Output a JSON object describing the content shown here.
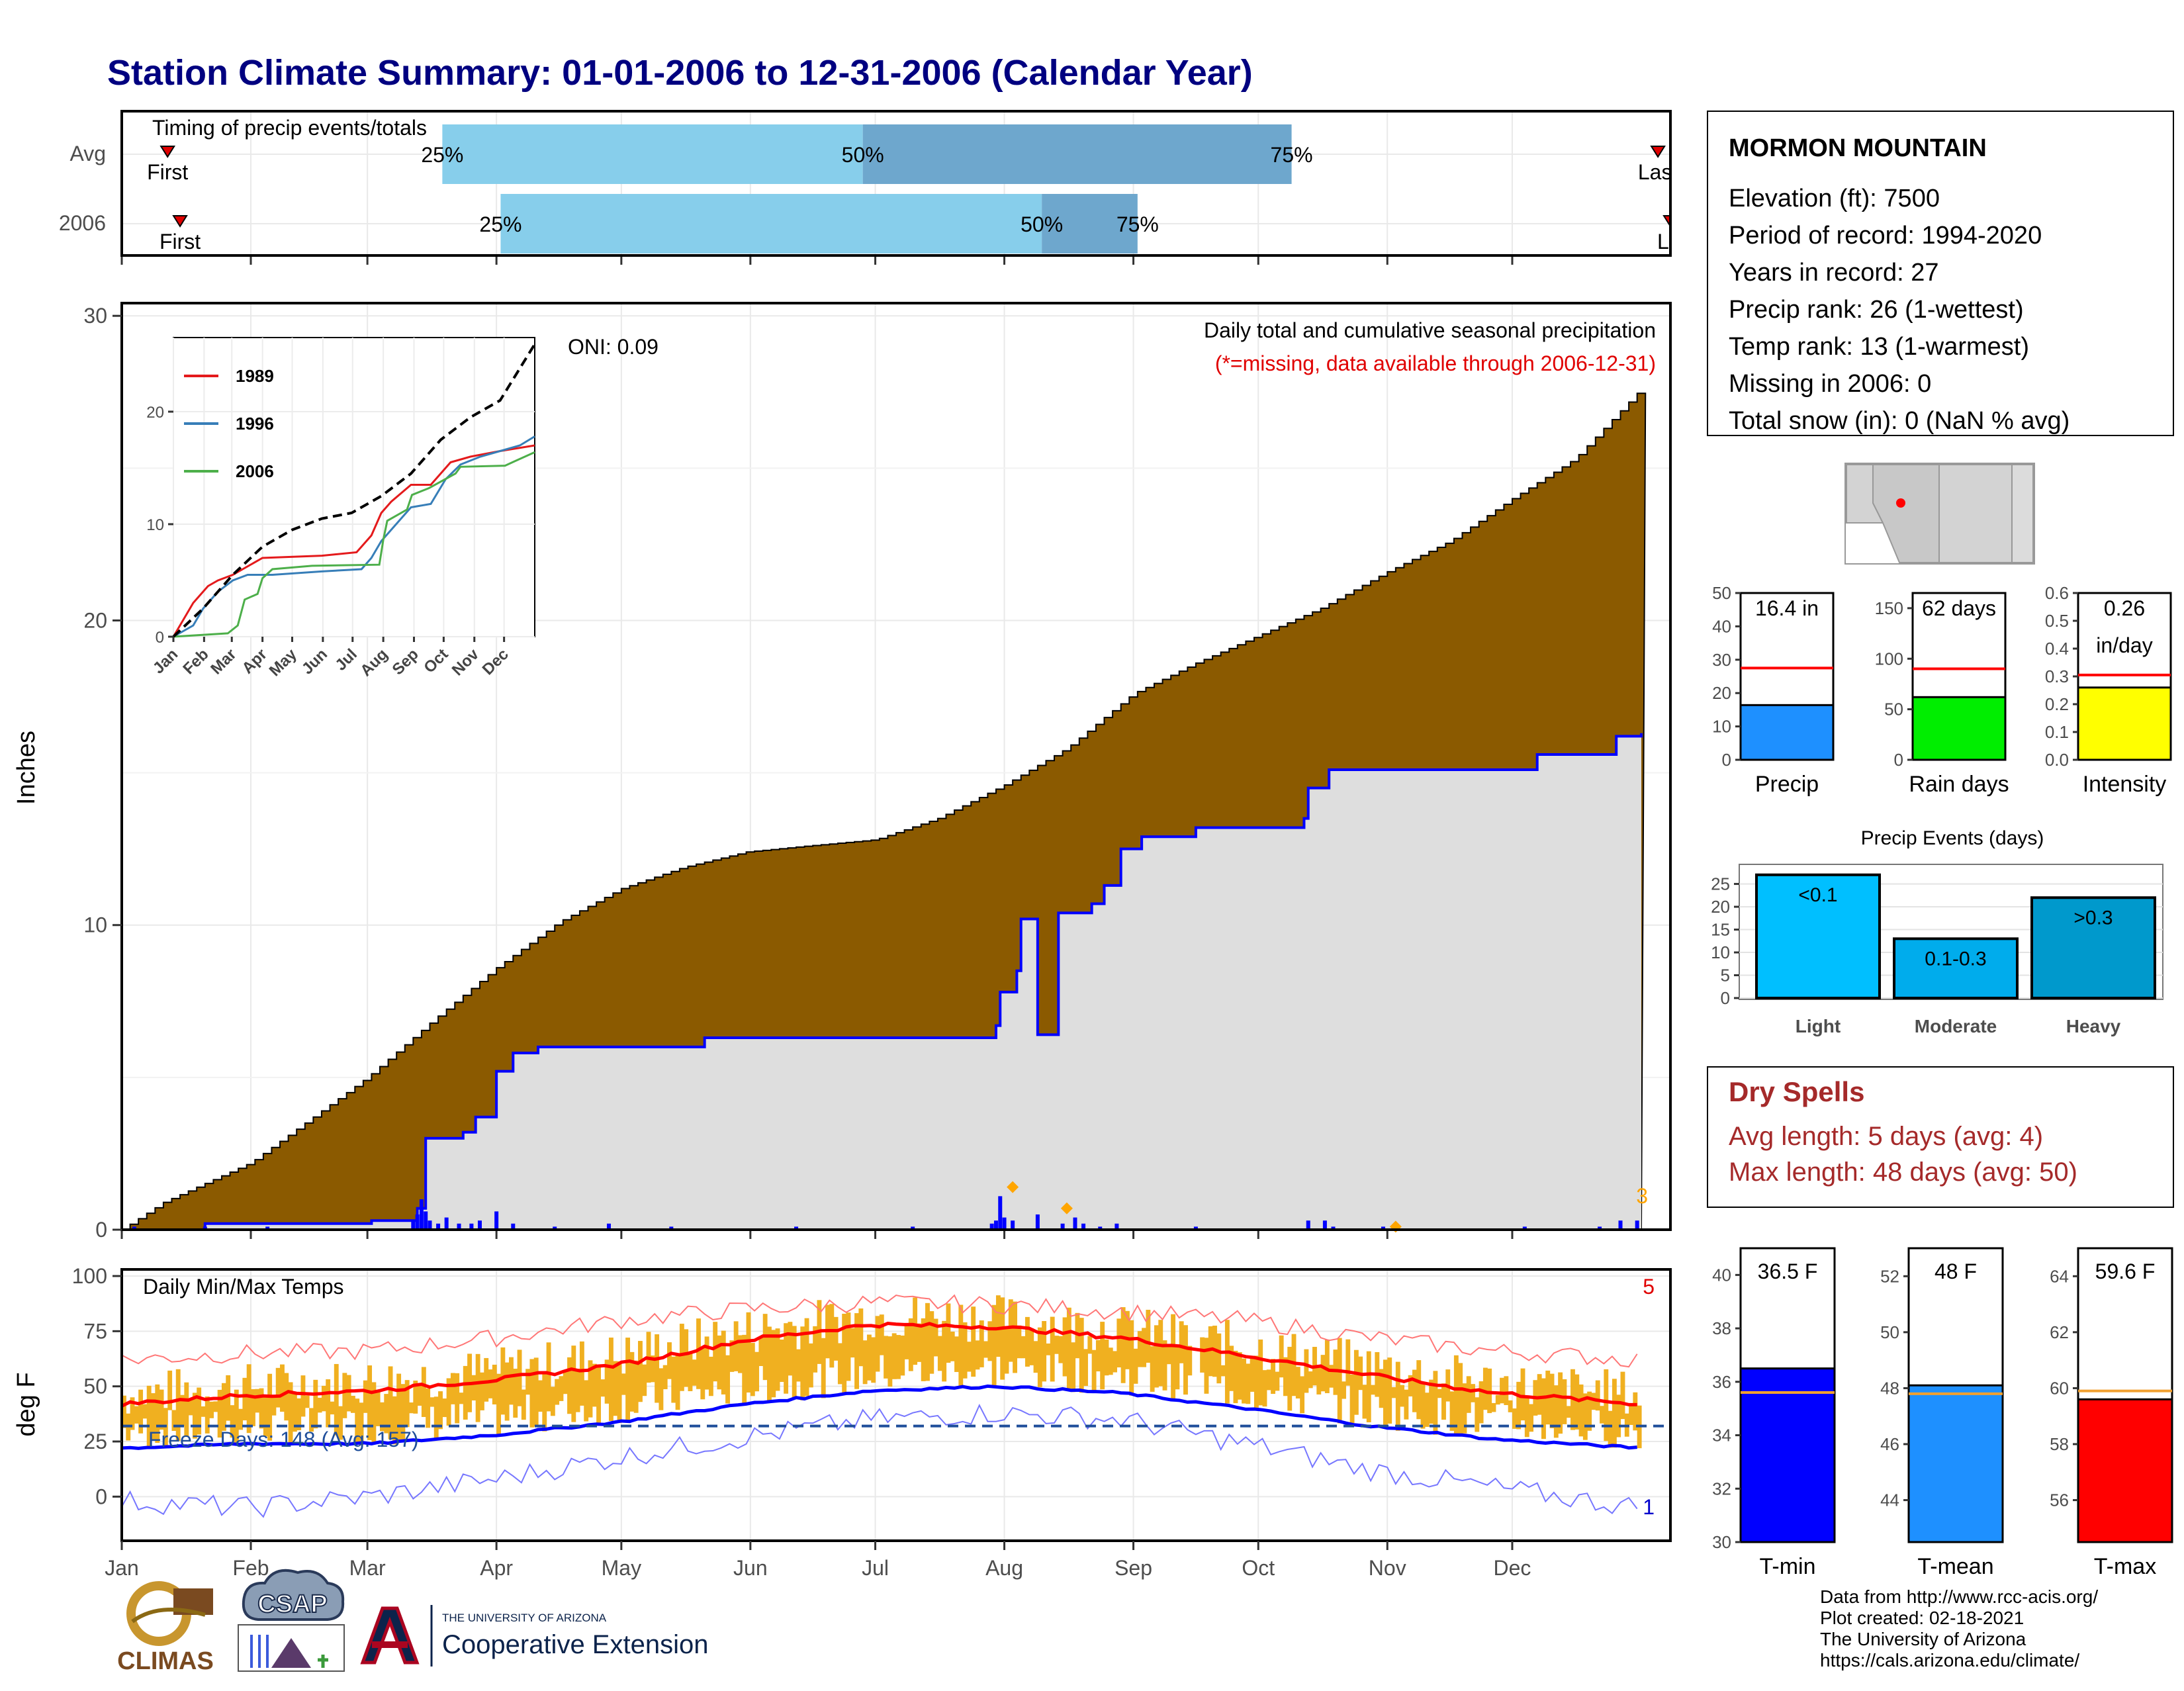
{
  "title": "Station Climate Summary: 01-01-2006 to 12-31-2006 (Calendar Year)",
  "colors": {
    "title": "#000080",
    "precip_fill": "#8b5a00",
    "obs_fill": "#dedede",
    "obs_line": "#0000ff",
    "temp_bar": "#f0b020",
    "dryspell": "#a52a2a"
  },
  "months": [
    "Jan",
    "Feb",
    "Mar",
    "Apr",
    "May",
    "Jun",
    "Jul",
    "Aug",
    "Sep",
    "Oct",
    "Nov",
    "Dec"
  ],
  "timing": {
    "title": "Timing of precip events/totals",
    "rows": [
      {
        "name": "Avg",
        "first": "First",
        "last": "Last",
        "q25": "25%",
        "q50": "50%",
        "q75": "75%",
        "q25_day": 77,
        "q50_day": 178,
        "q75_day": 281,
        "first_day": 11,
        "last_day": 369
      },
      {
        "name": "2006",
        "first": "First",
        "last": "Last",
        "q25": "25%",
        "q50": "50%",
        "q75": "75%",
        "q25_day": 91,
        "q50_day": 221,
        "q75_day": 244,
        "first_day": 14,
        "last_day": 375
      }
    ]
  },
  "precip": {
    "ylabel": "Inches",
    "subtitle": "Daily total and cumulative seasonal precipitation",
    "note": "(*=missing, data available through 2006-12-31)",
    "oni": "ONI: 0.09",
    "corner_count": "3",
    "yticks": [
      0,
      10,
      20,
      30
    ],
    "avg_cum": [
      [
        0,
        0
      ],
      [
        10,
        0.9
      ],
      [
        31,
        2.2
      ],
      [
        45,
        3.6
      ],
      [
        59,
        5
      ],
      [
        75,
        6.9
      ],
      [
        90,
        8.6
      ],
      [
        105,
        10.1
      ],
      [
        120,
        11.2
      ],
      [
        135,
        11.9
      ],
      [
        150,
        12.4
      ],
      [
        165,
        12.6
      ],
      [
        181,
        12.8
      ],
      [
        196,
        13.5
      ],
      [
        212,
        14.6
      ],
      [
        227,
        15.8
      ],
      [
        243,
        17.6
      ],
      [
        258,
        18.6
      ],
      [
        273,
        19.5
      ],
      [
        288,
        20.4
      ],
      [
        304,
        21.6
      ],
      [
        319,
        22.6
      ],
      [
        334,
        24
      ],
      [
        349,
        25.3
      ],
      [
        365,
        27.6
      ]
    ],
    "obs_cum": [
      [
        0,
        0
      ],
      [
        20,
        0.2
      ],
      [
        60,
        0.3
      ],
      [
        71,
        0.7
      ],
      [
        73,
        3.0
      ],
      [
        82,
        3.2
      ],
      [
        85,
        3.7
      ],
      [
        90,
        5.2
      ],
      [
        94,
        5.8
      ],
      [
        100,
        6.0
      ],
      [
        140,
        6.3
      ],
      [
        220,
        6.4
      ],
      [
        210,
        6.7
      ],
      [
        211,
        7.8
      ],
      [
        215,
        8.5
      ],
      [
        216,
        10.2
      ],
      [
        225,
        10.4
      ],
      [
        233,
        10.7
      ],
      [
        236,
        11.3
      ],
      [
        240,
        12.5
      ],
      [
        245,
        12.9
      ],
      [
        255,
        12.9
      ],
      [
        258,
        13.2
      ],
      [
        280,
        13.2
      ],
      [
        284,
        13.5
      ],
      [
        285,
        14.5
      ],
      [
        290,
        15.1
      ],
      [
        335,
        15.1
      ],
      [
        340,
        15.6
      ],
      [
        354,
        15.6
      ],
      [
        359,
        16.2
      ],
      [
        365,
        16.3
      ]
    ],
    "daily_bars": [
      [
        3,
        0.1
      ],
      [
        20,
        0.1
      ],
      [
        35,
        0.1
      ],
      [
        70,
        0.3
      ],
      [
        71,
        0.5
      ],
      [
        72,
        1.0
      ],
      [
        73,
        0.6
      ],
      [
        74,
        0.3
      ],
      [
        76,
        0.2
      ],
      [
        78,
        0.4
      ],
      [
        81,
        0.2
      ],
      [
        84,
        0.2
      ],
      [
        86,
        0.3
      ],
      [
        90,
        0.6
      ],
      [
        94,
        0.2
      ],
      [
        104,
        0.1
      ],
      [
        117,
        0.2
      ],
      [
        132,
        0.1
      ],
      [
        162,
        0.1
      ],
      [
        190,
        0.1
      ],
      [
        209,
        0.2
      ],
      [
        210,
        0.3
      ],
      [
        211,
        1.1
      ],
      [
        212,
        0.4
      ],
      [
        214,
        0.3
      ],
      [
        220,
        0.5
      ],
      [
        226,
        0.2
      ],
      [
        229,
        0.4
      ],
      [
        231,
        0.2
      ],
      [
        235,
        0.1
      ],
      [
        239,
        0.2
      ],
      [
        258,
        0.1
      ],
      [
        285,
        0.3
      ],
      [
        289,
        0.3
      ],
      [
        291,
        0.1
      ],
      [
        303,
        0.1
      ],
      [
        337,
        0.1
      ],
      [
        355,
        0.1
      ],
      [
        360,
        0.3
      ],
      [
        364,
        0.3
      ]
    ],
    "markers": [
      [
        214,
        1.4
      ],
      [
        227,
        0.7
      ],
      [
        306,
        0.1
      ]
    ]
  },
  "inset": {
    "yticks": [
      0,
      10,
      20
    ],
    "legend": [
      "1989",
      "1996",
      "2006"
    ],
    "months": [
      "Jan",
      "Feb",
      "Mar",
      "Apr",
      "May",
      "Jun",
      "Jul",
      "Aug",
      "Sep",
      "Oct",
      "Nov",
      "Dec"
    ],
    "series": [
      {
        "name": "1989",
        "color": "#e41a1c",
        "points": [
          [
            0,
            0
          ],
          [
            10,
            1.5
          ],
          [
            20,
            3
          ],
          [
            35,
            4.5
          ],
          [
            45,
            5
          ],
          [
            60,
            5.5
          ],
          [
            70,
            6
          ],
          [
            90,
            7
          ],
          [
            150,
            7.2
          ],
          [
            185,
            7.5
          ],
          [
            200,
            9
          ],
          [
            210,
            11
          ],
          [
            220,
            12
          ],
          [
            240,
            13.5
          ],
          [
            260,
            13.5
          ],
          [
            270,
            14.5
          ],
          [
            280,
            15.5
          ],
          [
            300,
            16
          ],
          [
            330,
            16.5
          ],
          [
            365,
            17
          ]
        ]
      },
      {
        "name": "1996",
        "color": "#377eb8",
        "points": [
          [
            0,
            0
          ],
          [
            20,
            1
          ],
          [
            30,
            2.5
          ],
          [
            45,
            4
          ],
          [
            60,
            5
          ],
          [
            75,
            5.5
          ],
          [
            100,
            5.5
          ],
          [
            150,
            5.8
          ],
          [
            190,
            6
          ],
          [
            200,
            7
          ],
          [
            210,
            8.5
          ],
          [
            225,
            10
          ],
          [
            240,
            11.5
          ],
          [
            260,
            11.8
          ],
          [
            275,
            14
          ],
          [
            290,
            15.3
          ],
          [
            310,
            16
          ],
          [
            330,
            16.5
          ],
          [
            350,
            17
          ],
          [
            365,
            17.8
          ]
        ]
      },
      {
        "name": "2006",
        "color": "#4daf4a",
        "points": [
          [
            0,
            0
          ],
          [
            55,
            0.3
          ],
          [
            65,
            1
          ],
          [
            72,
            3.3
          ],
          [
            85,
            3.8
          ],
          [
            90,
            5.2
          ],
          [
            100,
            6
          ],
          [
            140,
            6.3
          ],
          [
            208,
            6.4
          ],
          [
            212,
            8.6
          ],
          [
            216,
            10.3
          ],
          [
            236,
            11.3
          ],
          [
            241,
            12.6
          ],
          [
            258,
            13.2
          ],
          [
            285,
            14.5
          ],
          [
            290,
            15.1
          ],
          [
            335,
            15.2
          ],
          [
            345,
            15.6
          ],
          [
            365,
            16.4
          ]
        ]
      },
      {
        "name": "",
        "color": "#000000",
        "dashed": true,
        "points": [
          [
            0,
            0
          ],
          [
            30,
            2.5
          ],
          [
            60,
            5.5
          ],
          [
            90,
            8
          ],
          [
            120,
            9.5
          ],
          [
            150,
            10.5
          ],
          [
            180,
            11
          ],
          [
            210,
            12.5
          ],
          [
            240,
            14.5
          ],
          [
            270,
            17.5
          ],
          [
            300,
            19.5
          ],
          [
            330,
            21
          ],
          [
            365,
            26
          ]
        ]
      }
    ]
  },
  "temps": {
    "ylabel": "deg F",
    "label": "Daily Min/Max Temps",
    "freeze": "Freeze Days: 148 (Avg: 157)",
    "corner_hi": "5",
    "corner_lo": "1",
    "yticks": [
      0,
      25,
      50,
      75,
      100
    ],
    "freeze_line": 32,
    "avg_max": [
      [
        0,
        42
      ],
      [
        30,
        46
      ],
      [
        60,
        48
      ],
      [
        90,
        53
      ],
      [
        120,
        60
      ],
      [
        150,
        71
      ],
      [
        180,
        78
      ],
      [
        210,
        77
      ],
      [
        240,
        72
      ],
      [
        270,
        64
      ],
      [
        300,
        55
      ],
      [
        330,
        47
      ],
      [
        365,
        42
      ]
    ],
    "avg_min": [
      [
        0,
        22
      ],
      [
        30,
        24
      ],
      [
        60,
        24
      ],
      [
        90,
        28
      ],
      [
        120,
        34
      ],
      [
        150,
        42
      ],
      [
        180,
        48
      ],
      [
        210,
        50
      ],
      [
        240,
        47
      ],
      [
        270,
        40
      ],
      [
        300,
        32
      ],
      [
        330,
        26
      ],
      [
        365,
        22
      ]
    ],
    "rec_max": [
      [
        0,
        62
      ],
      [
        30,
        65
      ],
      [
        60,
        66
      ],
      [
        90,
        72
      ],
      [
        120,
        80
      ],
      [
        150,
        85
      ],
      [
        180,
        88
      ],
      [
        210,
        87
      ],
      [
        240,
        84
      ],
      [
        270,
        80
      ],
      [
        300,
        72
      ],
      [
        330,
        66
      ],
      [
        365,
        62
      ]
    ],
    "rec_min": [
      [
        0,
        -2
      ],
      [
        30,
        -5
      ],
      [
        60,
        0
      ],
      [
        90,
        8
      ],
      [
        120,
        18
      ],
      [
        150,
        27
      ],
      [
        180,
        35
      ],
      [
        210,
        38
      ],
      [
        240,
        35
      ],
      [
        270,
        24
      ],
      [
        300,
        12
      ],
      [
        330,
        4
      ],
      [
        365,
        -5
      ]
    ]
  },
  "station": {
    "name": "MORMON MOUNTAIN",
    "lines": [
      "Elevation (ft): 7500",
      "Period of record: 1994-2020",
      "Years in record: 27",
      "Precip rank: 26 (1-wettest)",
      "Temp rank: 13 (1-warmest)",
      "Missing in 2006: 0",
      "Total snow (in): 0 (NaN % avg)"
    ]
  },
  "mini_bars": [
    {
      "label": "Precip",
      "value_label": "16.4 in",
      "value": 16.4,
      "avg": 27.5,
      "ymax": 50,
      "yticks": [
        "0",
        "10",
        "20",
        "30",
        "40",
        "50"
      ],
      "color": "#1e90ff"
    },
    {
      "label": "Rain days",
      "value_label": "62 days",
      "value": 62,
      "avg": 90,
      "ymax": 165,
      "yticks": [
        "0",
        "50",
        "100",
        "150"
      ],
      "tickvals": [
        0,
        50,
        100,
        150
      ],
      "color": "#00ee00"
    },
    {
      "label": "Intensity",
      "value_label": "0.26",
      "value_label2": "in/day",
      "value": 0.26,
      "avg": 0.305,
      "ymax": 0.6,
      "yticks": [
        "0.0",
        "0.1",
        "0.2",
        "0.3",
        "0.4",
        "0.5",
        "0.6"
      ],
      "color": "#ffff00"
    }
  ],
  "events": {
    "title": "Precip Events (days)",
    "yticks": [
      "0",
      "5",
      "10",
      "15",
      "20",
      "25"
    ],
    "bars": [
      {
        "label": "Light",
        "value_label": "<0.1",
        "value": 27,
        "color": "#00bfff"
      },
      {
        "label": "Moderate",
        "value_label": "0.1-0.3",
        "value": 13,
        "color": "#00acec"
      },
      {
        "label": "Heavy",
        "value_label": ">0.3",
        "value": 22,
        "color": "#0099cc"
      }
    ]
  },
  "dry_spells": {
    "title": "Dry Spells",
    "avg": "Avg length: 5 days (avg: 4)",
    "max": "Max length: 48 days (avg: 50)"
  },
  "temp_bars": [
    {
      "label": "T-min",
      "value_label": "36.5 F",
      "value": 36.5,
      "avg": 35.6,
      "ymin": 30,
      "ymax": 41,
      "yticks": [
        30,
        32,
        34,
        36,
        38,
        40
      ],
      "color": "#0000ff"
    },
    {
      "label": "T-mean",
      "value_label": "48 F",
      "value": 48.1,
      "avg": 47.8,
      "ymin": 42.5,
      "ymax": 53,
      "yticks": [
        44,
        46,
        48,
        50,
        52
      ],
      "color": "#1e90ff"
    },
    {
      "label": "T-max",
      "value_label": "59.6 F",
      "value": 59.6,
      "avg": 59.9,
      "ymin": 54.5,
      "ymax": 65,
      "yticks": [
        56,
        58,
        60,
        62,
        64
      ],
      "color": "#ff0000"
    }
  ],
  "footer": [
    "Data from http://www.rcc-acis.org/",
    "Plot created: 02-18-2021",
    "The University of Arizona",
    "https://cals.arizona.edu/climate/"
  ],
  "logos": {
    "climas": "CLIMAS",
    "csap": "CSAP",
    "ua_small": "THE UNIVERSITY OF ARIZONA",
    "ua_big": "Cooperative Extension"
  }
}
